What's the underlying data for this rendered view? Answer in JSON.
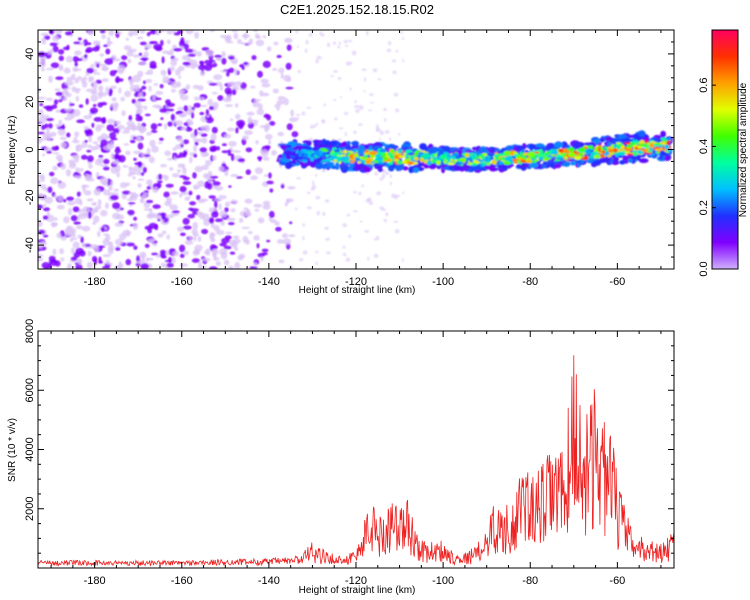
{
  "title": "C2E1.2025.152.18.15.R02",
  "colors": {
    "snr_line": "#ee2020",
    "speckle_light": "#d9c2f5",
    "speckle_dark": "#7f00ff",
    "axis": "#000000"
  },
  "colormap": [
    "#d0b0ff",
    "#8000ff",
    "#2030ff",
    "#00c0ff",
    "#00ffa0",
    "#40ff00",
    "#e0ff00",
    "#ffa000",
    "#ff3000",
    "#ff0060"
  ],
  "chart_data": [
    {
      "type": "heatmap",
      "xlabel": "Height of straight line (km)",
      "ylabel": "Frequency (Hz)",
      "xlim": [
        -193,
        -47
      ],
      "ylim": [
        -50,
        50
      ],
      "xticks": [
        -180,
        -160,
        -140,
        -120,
        -100,
        -80,
        -60
      ],
      "yticks": [
        -40,
        -20,
        0,
        20,
        40
      ],
      "colorbar": {
        "label": "Normalized spectral amplitude",
        "range": [
          0,
          0.78
        ],
        "ticks": [
          0,
          0.2,
          0.4,
          0.6
        ]
      },
      "noise_region": [
        -193,
        -134
      ],
      "signal_band": {
        "x": [
          -137,
          -130,
          -120,
          -110,
          -100,
          -90,
          -80,
          -70,
          -60,
          -48
        ],
        "center_hz": [
          -2,
          -2,
          -3,
          -3,
          -4,
          -4,
          -3,
          -2,
          0,
          2
        ],
        "halfwidth_hz": [
          4,
          5,
          5,
          5,
          4,
          4,
          4,
          4,
          5,
          5
        ],
        "peak_amplitude": [
          0.25,
          0.35,
          0.7,
          0.7,
          0.55,
          0.6,
          0.7,
          0.75,
          0.78,
          0.78
        ]
      },
      "grid": false
    },
    {
      "type": "line",
      "xlabel": "Height of straight line (km)",
      "ylabel": "SNR (10 * v/v)",
      "xlim": [
        -193,
        -47
      ],
      "ylim": [
        0,
        8000
      ],
      "xticks": [
        -180,
        -160,
        -140,
        -120,
        -100,
        -80,
        -60
      ],
      "yticks": [
        2000,
        4000,
        6000,
        8000
      ],
      "series": [
        {
          "x": [
            -193,
            -180,
            -160,
            -140,
            -134,
            -130,
            -125,
            -120,
            -118,
            -116,
            -114,
            -112,
            -110,
            -108,
            -106,
            -104,
            -102,
            -100,
            -98,
            -95,
            -92,
            -90,
            -88,
            -86,
            -84,
            -82,
            -81,
            -80,
            -78,
            -76,
            -75,
            -74,
            -73,
            -72,
            -71,
            -70,
            -69,
            -68,
            -67,
            -66,
            -65,
            -64,
            -63,
            -62,
            -61,
            -60,
            -58,
            -56,
            -54,
            -52,
            -50,
            -48,
            -47
          ],
          "y": [
            200,
            200,
            200,
            250,
            300,
            850,
            350,
            600,
            1700,
            2200,
            1600,
            2500,
            2000,
            2300,
            1200,
            800,
            900,
            900,
            600,
            500,
            800,
            1500,
            2300,
            1900,
            2500,
            3000,
            3900,
            2900,
            3200,
            3700,
            4100,
            3900,
            3800,
            5100,
            5200,
            8000,
            6000,
            5000,
            5600,
            5200,
            6800,
            4900,
            5300,
            4300,
            4300,
            3000,
            1800,
            1100,
            1000,
            900,
            800,
            1100,
            1200
          ]
        }
      ],
      "grid": false
    }
  ]
}
